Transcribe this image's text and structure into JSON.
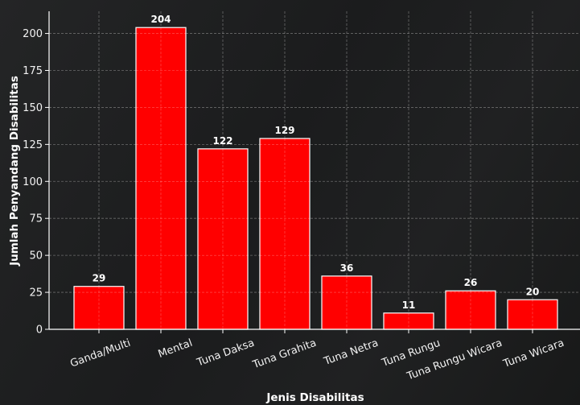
{
  "chart_data": {
    "type": "bar",
    "categories": [
      "Ganda/Multi",
      "Mental",
      "Tuna Daksa",
      "Tuna Grahita",
      "Tuna Netra",
      "Tuna Rungu",
      "Tuna Rungu Wicara",
      "Tuna Wicara"
    ],
    "values": [
      29,
      204,
      122,
      129,
      36,
      11,
      26,
      20
    ],
    "xlabel": "Jenis Disabilitas",
    "ylabel": "Jumlah Penyandang Disabilitas",
    "ylim": [
      0,
      215
    ],
    "yticks": [
      0,
      25,
      50,
      75,
      100,
      125,
      150,
      175,
      200
    ],
    "grid": true,
    "bar_color": "#ff0000",
    "bar_edge_color": "#ffffff",
    "background_color": "#1c1d1e",
    "text_color": "#ffffff"
  }
}
